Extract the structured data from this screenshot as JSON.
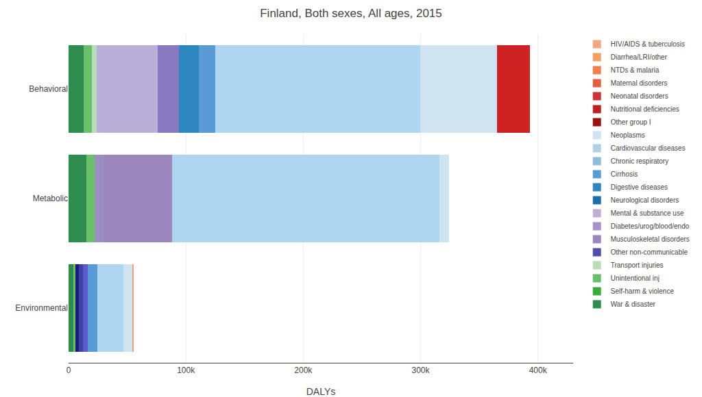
{
  "chart_data": {
    "type": "bar",
    "orientation": "horizontal",
    "stacked": true,
    "grid": true,
    "legend": "right",
    "title": "Finland, Both sexes, All ages, 2015",
    "xlabel": "DALYs",
    "categories": [
      "Behavioral",
      "Metabolic",
      "Environmental"
    ],
    "xlim": [
      0,
      430000
    ],
    "xticks": [
      0,
      {
        "value": 100000,
        "label": "100k"
      },
      {
        "value": 200000,
        "label": "200k"
      },
      {
        "value": 300000,
        "label": "300k"
      },
      {
        "value": 400000,
        "label": "400k"
      }
    ],
    "series": [
      {
        "values": [
          13000,
          15000,
          4000
        ],
        "colors": [
          "#2d8c4e",
          "#2d8c4e",
          "#2d8c4e"
        ]
      },
      {
        "values": [
          7000,
          7000,
          2000
        ],
        "colors": [
          "#6abf6a",
          "#6abf6a",
          "#6abf6a"
        ]
      },
      {
        "values": [
          4000,
          8000,
          2500
        ],
        "colors": [
          "#b8ddb8",
          "#9b8fc0",
          "#1a1a7a"
        ]
      },
      {
        "values": [
          52000,
          58000,
          4000
        ],
        "colors": [
          "#b8b0d8",
          "#9b86bd",
          "#4040a0"
        ]
      },
      {
        "values": [
          18000,
          228000,
          4000
        ],
        "colors": [
          "#8878c0",
          "#aed6f1",
          "#5b5bcd"
        ]
      },
      {
        "values": [
          17000,
          8000,
          8000
        ],
        "colors": [
          "#2e86c1",
          "#cfe4f0",
          "#5b9bd5"
        ]
      },
      {
        "values": [
          14000,
          null,
          22000
        ],
        "colors": [
          "#5b9bd5",
          null,
          "#aed6f1"
        ]
      },
      {
        "values": [
          175000,
          null,
          8000
        ],
        "colors": [
          "#aed6f1",
          null,
          "#cfe4f0"
        ]
      },
      {
        "values": [
          65000,
          null,
          500
        ],
        "colors": [
          "#cfe4f0",
          null,
          "#f4a080"
        ]
      },
      {
        "values": [
          28000,
          null,
          null
        ],
        "colors": [
          "#cc2222",
          null,
          null
        ]
      },
      {
        "name": "HIV/AIDS & tuberculosis",
        "color": "#f4a582",
        "values": [
          null,
          null,
          null
        ]
      },
      {
        "name": "Diarrhea/LRI/other",
        "color": "#f4a060",
        "values": [
          null,
          null,
          null
        ]
      },
      {
        "name": "NTDs & malaria",
        "color": "#f08050",
        "values": [
          null,
          null,
          null
        ]
      },
      {
        "name": "Maternal disorders",
        "color": "#e06040",
        "values": [
          null,
          null,
          null
        ]
      },
      {
        "name": "Neonatal disorders",
        "color": "#cc3333",
        "values": [
          null,
          null,
          null
        ]
      },
      {
        "name": "Nutritional deficiencies",
        "color": "#bb2222",
        "values": [
          null,
          null,
          null
        ]
      },
      {
        "name": "Other group I",
        "color": "#991111",
        "values": [
          null,
          null,
          null
        ]
      },
      {
        "name": "Neoplasms",
        "color": "#cfe4f0",
        "values": [
          null,
          null,
          null
        ]
      },
      {
        "name": "Cardiovascular diseases",
        "color": "#b0d0e8",
        "values": [
          null,
          null,
          null
        ]
      },
      {
        "name": "Chronic respiratory",
        "color": "#90bcdc",
        "values": [
          null,
          null,
          null
        ]
      },
      {
        "name": "Cirrhosis",
        "color": "#5b9bd5",
        "values": [
          null,
          null,
          null
        ]
      },
      {
        "name": "Digestive diseases",
        "color": "#2e86c1",
        "values": [
          null,
          null,
          null
        ]
      },
      {
        "name": "Neurological disorders",
        "color": "#1a6fa8",
        "values": [
          null,
          null,
          null
        ]
      },
      {
        "name": "Mental & substance use",
        "color": "#c0aed8",
        "values": [
          null,
          null,
          null
        ]
      },
      {
        "name": "Diabetes/urog/blood/endo",
        "color": "#a890c8",
        "values": [
          null,
          null,
          null
        ]
      },
      {
        "name": "Musculoskeletal disorders",
        "color": "#9b86bd",
        "values": [
          null,
          null,
          null
        ]
      },
      {
        "name": "Other non-communicable",
        "color": "#5050a8",
        "values": [
          null,
          null,
          null
        ]
      },
      {
        "name": "Transport injuries",
        "color": "#b8ddb8",
        "values": [
          null,
          null,
          null
        ]
      },
      {
        "name": "Unintentional inj",
        "color": "#6abf6a",
        "values": [
          null,
          null,
          null
        ]
      },
      {
        "name": "Self-harm & violence",
        "color": "#3aaa3a",
        "values": [
          null,
          null,
          null
        ]
      },
      {
        "name": "War & disaster",
        "color": "#2d8c4e",
        "values": [
          null,
          null,
          null
        ]
      }
    ]
  }
}
